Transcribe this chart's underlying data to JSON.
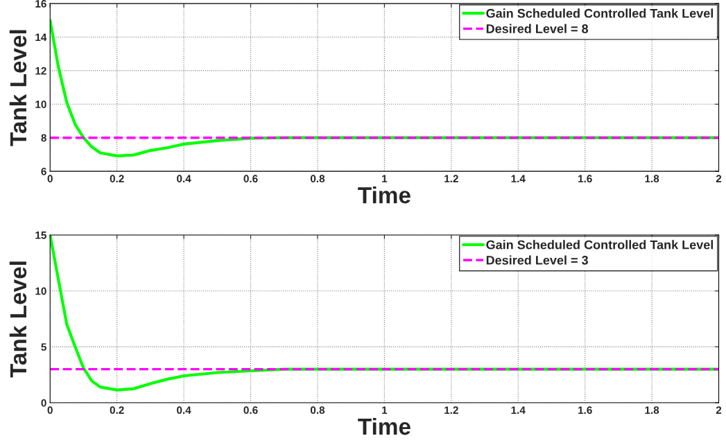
{
  "chart_data": [
    {
      "type": "line",
      "xlabel": "Time",
      "ylabel": "Tank Level",
      "xlim": [
        0,
        2
      ],
      "ylim": [
        6,
        16
      ],
      "xticks": [
        0,
        0.2,
        0.4,
        0.6,
        0.8,
        1,
        1.2,
        1.4,
        1.6,
        1.8,
        2
      ],
      "yticks": [
        6,
        8,
        10,
        12,
        14,
        16
      ],
      "grid": true,
      "legend": "top right",
      "series": [
        {
          "name": "Gain Scheduled Controlled Tank Level",
          "color": "#00ff00",
          "line_style": "solid",
          "x": [
            0,
            0.025,
            0.05,
            0.075,
            0.1,
            0.125,
            0.15,
            0.2,
            0.25,
            0.3,
            0.35,
            0.4,
            0.5,
            0.6,
            0.7,
            2
          ],
          "values": [
            15,
            12.2,
            10.1,
            8.8,
            8.0,
            7.45,
            7.1,
            6.92,
            6.97,
            7.24,
            7.4,
            7.62,
            7.83,
            7.97,
            8.0,
            8.0
          ]
        },
        {
          "name": "Desired Level = 8",
          "color": "#ff00ff",
          "line_style": "dashed",
          "x": [
            0,
            2
          ],
          "values": [
            8,
            8
          ]
        }
      ]
    },
    {
      "type": "line",
      "xlabel": "Time",
      "ylabel": "Tank Level",
      "xlim": [
        0,
        2
      ],
      "ylim": [
        0,
        15
      ],
      "xticks": [
        0,
        0.2,
        0.4,
        0.6,
        0.8,
        1,
        1.2,
        1.4,
        1.6,
        1.8,
        2
      ],
      "yticks": [
        0,
        5,
        10,
        15
      ],
      "grid": true,
      "legend": "top right",
      "series": [
        {
          "name": "Gain Scheduled Controlled Tank Level",
          "color": "#00ff00",
          "line_style": "solid",
          "x": [
            0,
            0.025,
            0.05,
            0.075,
            0.1,
            0.125,
            0.15,
            0.2,
            0.25,
            0.3,
            0.35,
            0.4,
            0.5,
            0.6,
            0.7,
            2
          ],
          "values": [
            15,
            11.0,
            7.0,
            5.0,
            3.1,
            1.95,
            1.4,
            1.14,
            1.25,
            1.7,
            2.1,
            2.4,
            2.7,
            2.85,
            3.0,
            3.0
          ]
        },
        {
          "name": "Desired Level = 3",
          "color": "#ff00ff",
          "line_style": "dashed",
          "x": [
            0,
            2
          ],
          "values": [
            3,
            3
          ]
        }
      ]
    }
  ]
}
